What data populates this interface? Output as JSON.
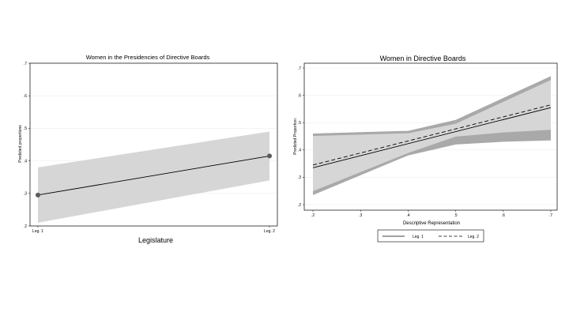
{
  "chart_data": [
    {
      "type": "line",
      "title": "Women in the Presidencies of Directive Boards",
      "xlabel": "Legislature",
      "ylabel": "Predicted proportions",
      "categories": [
        "Leg. 1",
        "Leg. 2"
      ],
      "ylim": [
        0.2,
        0.7
      ],
      "yticks": [
        ".2",
        ".3",
        ".4",
        ".5",
        ".6",
        ".7"
      ],
      "grid": true,
      "series": [
        {
          "values": [
            0.295,
            0.415
          ],
          "ci_low": [
            0.21,
            0.34
          ],
          "ci_high": [
            0.38,
            0.49
          ]
        }
      ]
    },
    {
      "type": "line",
      "title": "Women in Directive Boards",
      "xlabel": "Descriptive Representation",
      "ylabel": "Predicted Proportion",
      "x": [
        0.2,
        0.3,
        0.4,
        0.5,
        0.6,
        0.7
      ],
      "xticks": [
        ".2",
        ".3",
        ".4",
        ".5",
        ".6",
        ".7"
      ],
      "xlim": [
        0.2,
        0.7
      ],
      "ylim": [
        0.2,
        0.7
      ],
      "yticks": [
        ".2",
        ".3",
        ".4",
        ".5",
        ".6",
        ".7"
      ],
      "grid": true,
      "legend": "bottom",
      "series": [
        {
          "name": "Leg. 1",
          "style": "solid",
          "x": [
            0.2,
            0.7
          ],
          "values": [
            0.335,
            0.555
          ],
          "band_x": [
            0.2,
            0.4,
            0.5,
            0.6,
            0.7
          ],
          "ci_low": [
            0.235,
            0.38,
            0.42,
            0.43,
            0.435
          ],
          "ci_high": [
            0.455,
            0.465,
            0.5,
            0.58,
            0.66
          ]
        },
        {
          "name": "Leg. 2",
          "style": "dashed",
          "x": [
            0.2,
            0.7
          ],
          "values": [
            0.345,
            0.565
          ],
          "band_x": [
            0.2,
            0.4,
            0.5,
            0.6,
            0.7
          ],
          "ci_low": [
            0.245,
            0.385,
            0.445,
            0.46,
            0.47
          ],
          "ci_high": [
            0.46,
            0.47,
            0.51,
            0.59,
            0.67
          ]
        }
      ]
    }
  ],
  "colors": {
    "band_light": "#d6d6d6",
    "band_dark": "#a9a9a9",
    "line": "#000000",
    "marker": "#5a5a5a"
  }
}
